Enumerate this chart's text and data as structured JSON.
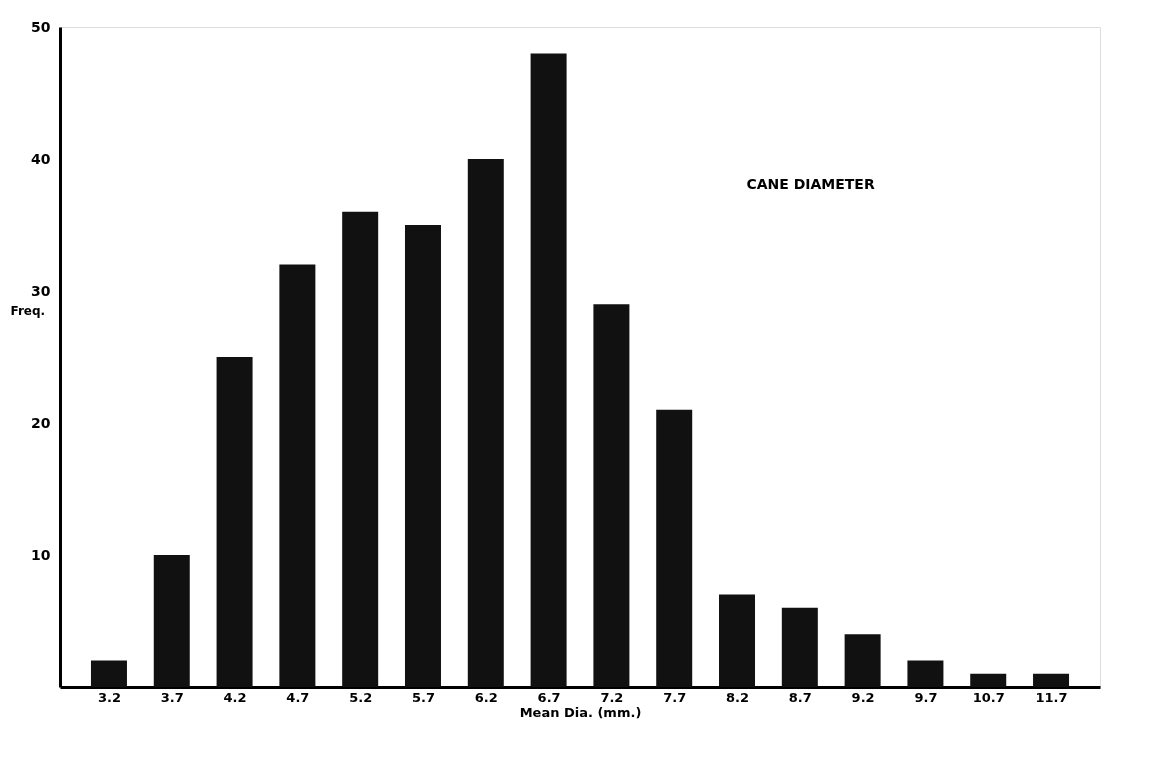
{
  "chart_data": {
    "type": "bar",
    "title": "CANE DIAMETER",
    "xlabel": "Mean Dia. (mm.)",
    "ylabel": "Freq.",
    "categories": [
      "3.2",
      "3.7",
      "4.2",
      "4.7",
      "5.2",
      "5.7",
      "6.2",
      "6.7",
      "7.2",
      "7.7",
      "8.2",
      "8.7",
      "9.2",
      "9.7",
      "10.7",
      "11.7"
    ],
    "values": [
      2,
      10,
      25,
      32,
      36,
      35,
      40,
      48,
      29,
      21,
      7,
      6,
      4,
      2,
      1,
      1
    ],
    "color": "#111111",
    "ylim": [
      0,
      50
    ],
    "yticks": [
      10,
      20,
      30,
      40,
      50
    ],
    "grid": false
  }
}
